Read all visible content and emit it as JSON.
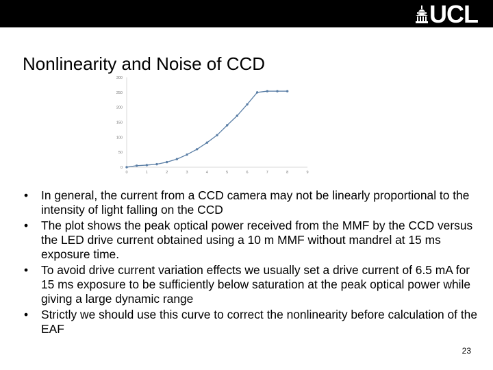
{
  "slide": {
    "logo": "UCL",
    "title": "Nonlinearity and Noise of CCD",
    "page_number": "23",
    "bullet_marker": "•",
    "bullets": [
      "In general, the current from a CCD camera may not be linearly proportional to the intensity of light falling on the CCD",
      "The plot shows the peak optical power received from the MMF by the CCD versus the LED drive current obtained using a 10 m MMF without mandrel at 15 ms exposure time.",
      "To avoid drive current variation effects we usually set a drive current of 6.5 mA for 15 ms exposure to be sufficiently below saturation at the peak optical power while giving a large dynamic range",
      "Strictly we should use this curve to correct the nonlinearity before calculation of the EAF"
    ]
  },
  "colors": {
    "topbar": "#000000",
    "series": "#5b7fa6",
    "axis": "#d9d9d9"
  },
  "chart_data": {
    "type": "line",
    "x": [
      0,
      0.5,
      1,
      1.5,
      2,
      2.5,
      3,
      3.5,
      4,
      4.5,
      5,
      5.5,
      6,
      6.5,
      7,
      7.5,
      8
    ],
    "series": [
      {
        "values": [
          0,
          5,
          7,
          10,
          17,
          27,
          42,
          60,
          82,
          107,
          140,
          172,
          210,
          250,
          254,
          254,
          254
        ]
      }
    ],
    "xticks": [
      "0",
      "1",
      "2",
      "3",
      "4",
      "5",
      "6",
      "7",
      "8",
      "9"
    ],
    "yticks": [
      "0",
      "50",
      "100",
      "150",
      "200",
      "250",
      "300"
    ],
    "xlim": [
      0,
      9
    ],
    "ylim": [
      0,
      300
    ],
    "title": "",
    "xlabel": "",
    "ylabel": "",
    "grid": false
  }
}
